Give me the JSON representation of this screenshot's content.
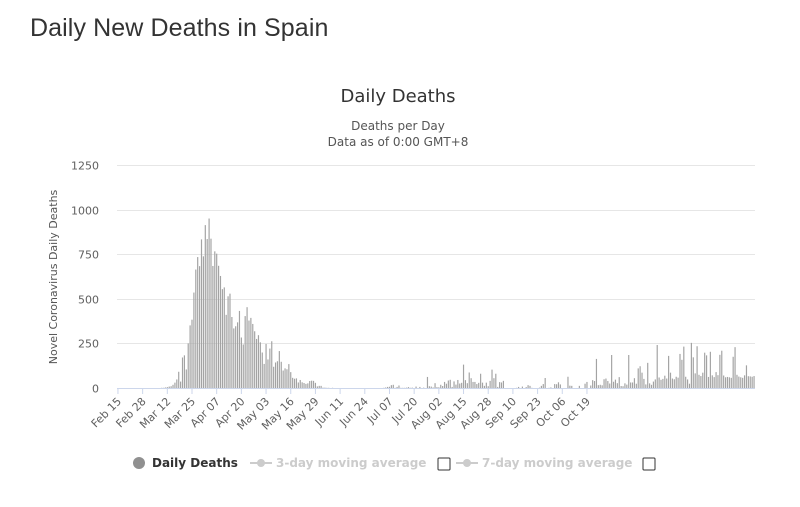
{
  "page": {
    "heading": "Daily New Deaths in Spain"
  },
  "colors": {
    "bar": "#a3a3a3",
    "grid": "#e6e6e6",
    "legend_active": "#333333",
    "legend_inactive": "#cccccc"
  },
  "legend": {
    "items": [
      {
        "label": "Daily Deaths",
        "active": true,
        "checkbox": false
      },
      {
        "label": "3-day moving average",
        "active": false,
        "checkbox": true
      },
      {
        "label": "7-day moving average",
        "active": false,
        "checkbox": true
      }
    ]
  },
  "chart_data": {
    "type": "bar",
    "title": "Daily Deaths",
    "subtitle_lines": [
      "Deaths per Day",
      "Data as of 0:00 GMT+8"
    ],
    "ylabel": "Novel Coronavirus Daily Deaths",
    "xlabel": "",
    "ylim": [
      0,
      1250
    ],
    "yticks": [
      0,
      250,
      500,
      750,
      1000,
      1250
    ],
    "x_tick_labels": [
      "Feb 15",
      "Feb 28",
      "Mar 12",
      "Mar 25",
      "Apr 07",
      "Apr 20",
      "May 03",
      "May 16",
      "May 29",
      "Jun 11",
      "Jun 24",
      "Jul 07",
      "Jul 20",
      "Aug 02",
      "Aug 15",
      "Aug 28",
      "Sep 10",
      "Sep 23",
      "Oct 06",
      "Oct 19"
    ],
    "start_date": "Feb 15",
    "grid": true,
    "legend_position": "bottom",
    "series": [
      {
        "name": "Daily Deaths",
        "values": [
          0,
          0,
          0,
          0,
          0,
          0,
          0,
          0,
          0,
          0,
          0,
          0,
          0,
          0,
          0,
          0,
          0,
          0,
          0,
          0,
          0,
          0,
          0,
          1,
          1,
          3,
          5,
          8,
          10,
          18,
          30,
          48,
          91,
          36,
          171,
          183,
          104,
          250,
          351,
          383,
          535,
          664,
          734,
          683,
          833,
          738,
          913,
          835,
          950,
          837,
          684,
          766,
          753,
          685,
          628,
          554,
          564,
          410,
          514,
          529,
          398,
          334,
          346,
          368,
          432,
          283,
          244,
          403,
          453,
          378,
          393,
          359,
          318,
          275,
          296,
          256,
          199,
          135,
          247,
          160,
          221,
          262,
          119,
          143,
          150,
          207,
          147,
          98,
          110,
          105,
          134,
          89,
          57,
          52,
          54,
          31,
          45,
          32,
          28,
          23,
          26,
          39,
          41,
          40,
          29,
          9,
          12,
          12,
          2,
          2,
          1,
          1,
          0,
          1,
          0,
          0,
          0,
          0,
          0,
          0,
          0,
          0,
          0,
          0,
          0,
          0,
          0,
          0,
          0,
          0,
          0,
          0,
          0,
          0,
          0,
          0,
          0,
          0,
          0,
          0,
          1,
          3,
          6,
          7,
          16,
          18,
          1,
          6,
          14,
          1,
          1,
          1,
          2,
          5,
          1,
          2,
          0,
          8,
          0,
          6,
          0,
          2,
          0,
          62,
          10,
          8,
          3,
          27,
          5,
          4,
          18,
          11,
          34,
          24,
          42,
          46,
          6,
          37,
          19,
          45,
          25,
          29,
          131,
          44,
          27,
          87,
          55,
          34,
          34,
          22,
          29,
          80,
          30,
          12,
          30,
          10,
          40,
          103,
          55,
          80,
          6,
          33,
          31,
          40,
          0,
          0,
          0,
          0,
          0,
          0,
          1,
          6,
          0,
          8,
          0,
          5,
          16,
          12,
          1,
          0,
          0,
          0,
          2,
          12,
          22,
          56,
          0,
          1,
          3,
          0,
          22,
          21,
          32,
          20,
          0,
          0,
          0,
          63,
          13,
          12,
          0,
          0,
          0,
          12,
          0,
          0,
          24,
          34,
          0,
          14,
          44,
          39,
          163,
          16,
          18,
          15,
          49,
          53,
          39,
          25,
          185,
          35,
          47,
          27,
          61,
          11,
          10,
          26,
          19,
          185,
          31,
          31,
          55,
          24,
          110,
          122,
          86,
          51,
          20,
          141,
          26,
          18,
          36,
          48,
          241,
          59,
          46,
          51,
          69,
          53,
          180,
          86,
          53,
          49,
          63,
          58,
          191,
          158,
          232,
          63,
          48,
          24,
          253,
          172,
          82,
          234,
          74,
          67,
          86,
          198,
          183,
          62,
          203,
          71,
          61,
          89,
          72,
          186,
          209,
          70,
          60,
          62,
          60,
          57,
          175,
          229,
          74,
          64,
          60,
          57,
          71,
          127,
          66,
          65,
          63,
          67
        ]
      }
    ]
  }
}
